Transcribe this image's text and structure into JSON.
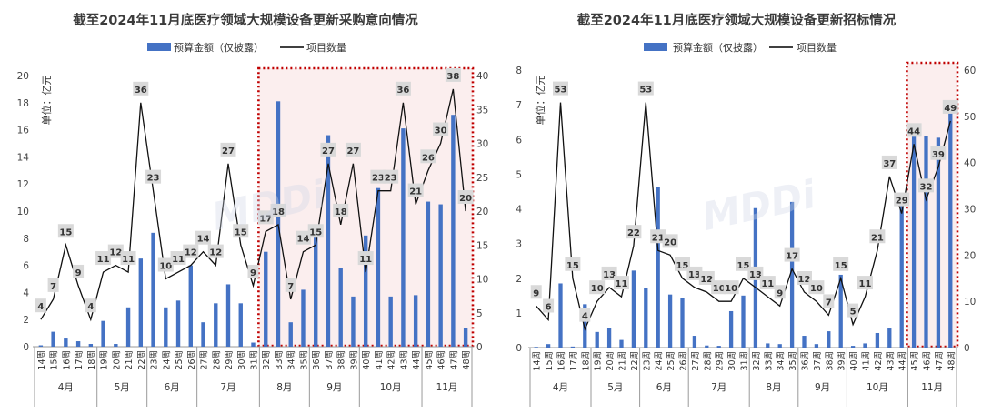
{
  "watermark": "MDDi",
  "chart_data": [
    {
      "type": "bar",
      "title": "截至2024年11月底医疗领域大规模设备更新采购意向情况",
      "legend": [
        "预算金额（仅披露）",
        "项目数量"
      ],
      "unit_label": "单位：亿元",
      "x": [
        "14周",
        "15周",
        "16周",
        "17周",
        "18周",
        "19周",
        "20周",
        "21周",
        "22周",
        "23周",
        "24周",
        "25周",
        "26周",
        "27周",
        "28周",
        "29周",
        "30周",
        "31周",
        "32周",
        "33周",
        "34周",
        "35周",
        "36周",
        "37周",
        "38周",
        "39周",
        "40周",
        "41周",
        "42周",
        "43周",
        "44周",
        "45周",
        "46周",
        "47周",
        "48周"
      ],
      "months": [
        {
          "label": "4月",
          "start": 0,
          "end": 4
        },
        {
          "label": "5月",
          "start": 5,
          "end": 8
        },
        {
          "label": "6月",
          "start": 9,
          "end": 12
        },
        {
          "label": "7月",
          "start": 13,
          "end": 17
        },
        {
          "label": "8月",
          "start": 18,
          "end": 21
        },
        {
          "label": "9月",
          "start": 22,
          "end": 25
        },
        {
          "label": "10月",
          "start": 26,
          "end": 30
        },
        {
          "label": "11月",
          "start": 31,
          "end": 34
        }
      ],
      "series": [
        {
          "name": "预算金额（仅披露）",
          "axis": "left",
          "color": "#4472C4",
          "values": [
            0.1,
            1.1,
            0.6,
            0.4,
            0.2,
            1.9,
            0.2,
            2.9,
            6.5,
            8.4,
            2.9,
            3.4,
            6.0,
            1.8,
            3.2,
            4.6,
            3.2,
            0.3,
            7.0,
            18.1,
            1.8,
            4.2,
            8.2,
            15.6,
            5.8,
            3.7,
            8.2,
            11.7,
            3.7,
            16.1,
            3.8,
            10.7,
            10.5,
            17.1,
            1.4
          ]
        },
        {
          "name": "项目数量",
          "axis": "right",
          "color": "#000000",
          "labels": true,
          "values": [
            4,
            7,
            15,
            9,
            4,
            11,
            12,
            11,
            36,
            23,
            10,
            11,
            12,
            14,
            12,
            27,
            15,
            9,
            17,
            18,
            7,
            14,
            15,
            27,
            18,
            27,
            11,
            23,
            23,
            36,
            21,
            26,
            30,
            38,
            20
          ]
        }
      ],
      "ylim_left": [
        0,
        20
      ],
      "yticks_left": [
        0,
        2,
        4,
        6,
        8,
        10,
        12,
        14,
        16,
        18,
        20
      ],
      "ylim_right": [
        0,
        40
      ],
      "yticks_right": [
        0,
        5,
        10,
        15,
        20,
        25,
        30,
        35,
        40
      ],
      "highlight_range": [
        18,
        34
      ]
    },
    {
      "type": "bar",
      "title": "截至2024年11月底医疗领域大规模设备更新招标情况",
      "legend": [
        "预算金额（仅披露）",
        "项目数量"
      ],
      "unit_label": "单位：亿元",
      "x": [
        "14周",
        "15周",
        "16周",
        "17周",
        "18周",
        "19周",
        "20周",
        "21周",
        "22周",
        "23周",
        "24周",
        "25周",
        "26周",
        "27周",
        "28周",
        "29周",
        "30周",
        "31周",
        "32周",
        "33周",
        "34周",
        "35周",
        "36周",
        "37周",
        "38周",
        "39周",
        "40周",
        "41周",
        "42周",
        "43周",
        "44周",
        "45周",
        "46周",
        "47周",
        "48周"
      ],
      "months": [
        {
          "label": "4月",
          "start": 0,
          "end": 4
        },
        {
          "label": "5月",
          "start": 5,
          "end": 8
        },
        {
          "label": "6月",
          "start": 9,
          "end": 12
        },
        {
          "label": "7月",
          "start": 13,
          "end": 17
        },
        {
          "label": "8月",
          "start": 18,
          "end": 21
        },
        {
          "label": "9月",
          "start": 22,
          "end": 25
        },
        {
          "label": "10月",
          "start": 26,
          "end": 30
        },
        {
          "label": "11月",
          "start": 31,
          "end": 34
        }
      ],
      "series": [
        {
          "name": "预算金额（仅披露）",
          "axis": "left",
          "color": "#4472C4",
          "values": [
            0.02,
            0.1,
            1.85,
            0.03,
            1.25,
            0.45,
            0.57,
            0.22,
            2.22,
            1.72,
            4.62,
            1.53,
            1.42,
            0.34,
            0.06,
            0.05,
            1.05,
            1.5,
            4.02,
            0.12,
            0.1,
            4.2,
            0.34,
            0.1,
            0.47,
            2.1,
            0.05,
            0.12,
            0.42,
            0.55,
            4.15,
            6.1,
            6.1,
            6.05,
            6.95
          ]
        },
        {
          "name": "项目数量",
          "axis": "right",
          "color": "#000000",
          "values": [
            9,
            6,
            53,
            15,
            4,
            10,
            13,
            11,
            22,
            53,
            21,
            20,
            15,
            13,
            12,
            10,
            10,
            15,
            13,
            11,
            9,
            17,
            12,
            10,
            7,
            15,
            5,
            11,
            21,
            37,
            29,
            44,
            32,
            39,
            49
          ]
        }
      ],
      "point_labels": [
        {
          "i": 0,
          "t": "9"
        },
        {
          "i": 1,
          "t": "6"
        },
        {
          "i": 2,
          "t": "53"
        },
        {
          "i": 3,
          "t": "15"
        },
        {
          "i": 4,
          "t": "4"
        },
        {
          "i": 5,
          "t": "10"
        },
        {
          "i": 6,
          "t": "13"
        },
        {
          "i": 7,
          "t": "11"
        },
        {
          "i": 8,
          "t": "22"
        },
        {
          "i": 9,
          "t": "53"
        },
        {
          "i": 10,
          "t": "21"
        },
        {
          "i": 11,
          "t": "20"
        },
        {
          "i": 12,
          "t": "15"
        },
        {
          "i": 13,
          "t": "13"
        },
        {
          "i": 14,
          "t": "12"
        },
        {
          "i": 15,
          "t": "10"
        },
        {
          "i": 16,
          "t": "10"
        },
        {
          "i": 17,
          "t": "15"
        },
        {
          "i": 18,
          "t": "13"
        },
        {
          "i": 19,
          "t": "11"
        },
        {
          "i": 20,
          "t": "9"
        },
        {
          "i": 21,
          "t": "17"
        },
        {
          "i": 22,
          "t": "12"
        },
        {
          "i": 23,
          "t": "10"
        },
        {
          "i": 24,
          "t": "7"
        },
        {
          "i": 25,
          "t": "15"
        },
        {
          "i": 26,
          "t": "5"
        },
        {
          "i": 27,
          "t": "11"
        },
        {
          "i": 28,
          "t": "21"
        },
        {
          "i": 29,
          "t": "37"
        },
        {
          "i": 30,
          "t": "29"
        },
        {
          "i": 31,
          "t": "44"
        },
        {
          "i": 32,
          "t": "32"
        },
        {
          "i": 33,
          "t": "39"
        },
        {
          "i": 34,
          "t": "49"
        }
      ],
      "ylim_left": [
        0,
        8
      ],
      "yticks_left": [
        0,
        1,
        2,
        3,
        4,
        5,
        6,
        7,
        8
      ],
      "ylim_right": [
        0,
        60
      ],
      "yticks_right": [
        0,
        10,
        20,
        30,
        40,
        50,
        60
      ],
      "highlight_range": [
        31,
        34
      ]
    }
  ]
}
